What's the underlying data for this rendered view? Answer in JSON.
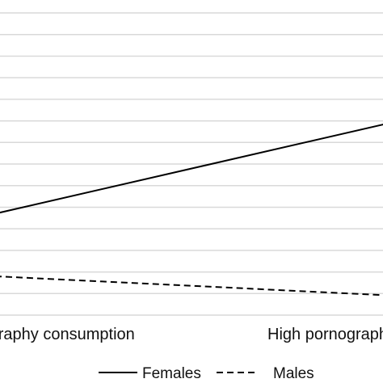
{
  "chart_data": {
    "type": "line",
    "categories": [
      "Low pornography consumption",
      "High pornography consumption"
    ],
    "series": [
      {
        "name": "Females",
        "values": [
          4.55,
          6.68
        ],
        "color": "#000000",
        "dash": "solid"
      },
      {
        "name": "Males",
        "values": [
          3.1,
          2.65
        ],
        "color": "#000000",
        "dash": "dashed"
      }
    ],
    "ylim": [
      2.2,
      9.5
    ],
    "grid": true,
    "grid_color": "#d9d9d9",
    "legend_position": "bottom"
  }
}
